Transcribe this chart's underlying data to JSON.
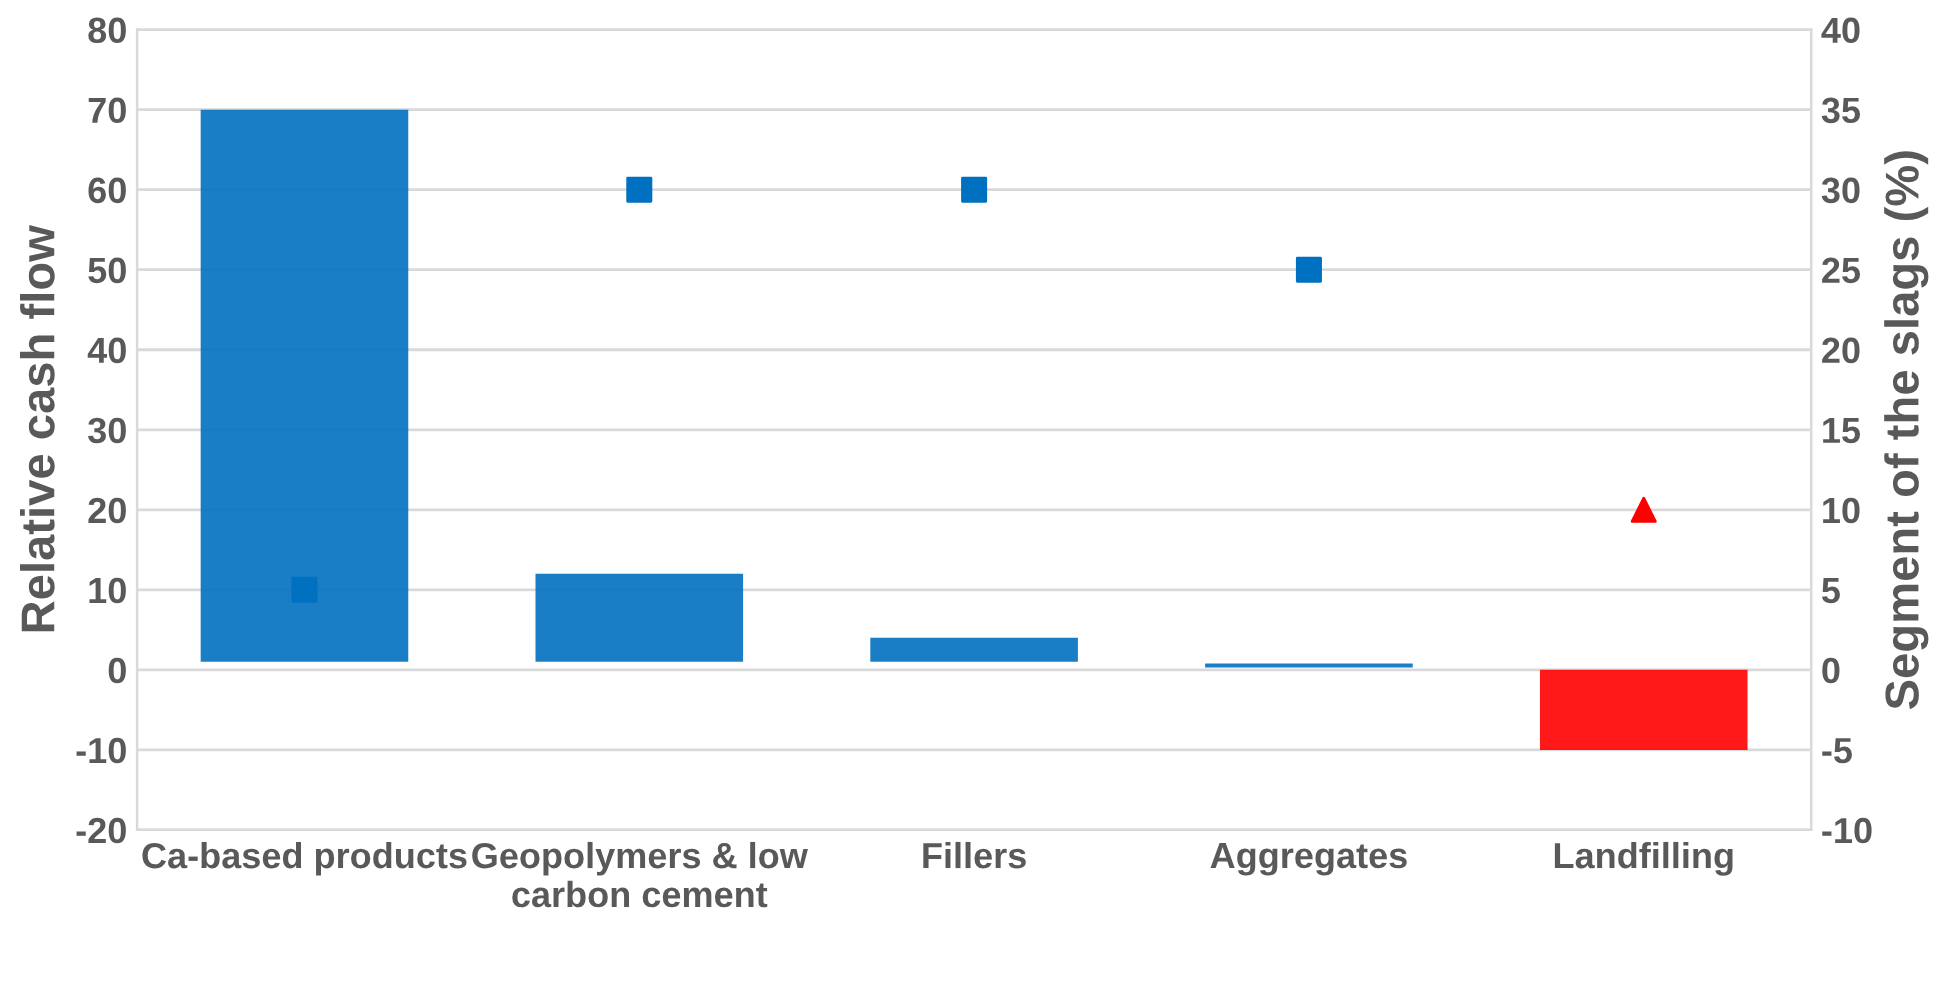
{
  "chart_data": {
    "type": "bar",
    "ylabel": "Relative cash flow",
    "y2label": "Segment of the slags (%)",
    "categories": [
      "Ca-based products",
      "Geopolymers & low carbon cement",
      "Fillers",
      "Aggregates",
      "Landfilling"
    ],
    "grid": "y",
    "ylim": [
      -20,
      80
    ],
    "yticks": [
      -20,
      -10,
      0,
      10,
      20,
      30,
      40,
      50,
      60,
      70,
      80
    ],
    "y2lim": [
      -10,
      40
    ],
    "y2ticks": [
      -10,
      -5,
      0,
      5,
      10,
      15,
      20,
      25,
      30,
      35,
      40
    ],
    "series": [
      {
        "values": [
          69,
          11,
          3,
          0.5,
          10
        ],
        "base": [
          1,
          1,
          1,
          0.3,
          -10
        ],
        "colors": [
          "#0070c0",
          "#0070c0",
          "#0070c0",
          "#0070c0",
          "#ff0000"
        ]
      },
      {
        "type": "scatter",
        "axis": "y2",
        "marker": "square",
        "color": "#0070c0",
        "values": [
          5,
          30,
          30,
          25,
          null
        ]
      },
      {
        "type": "scatter",
        "axis": "y2",
        "marker": "triangle",
        "color": "#ff0000",
        "values": [
          null,
          null,
          null,
          null,
          10
        ]
      }
    ]
  }
}
